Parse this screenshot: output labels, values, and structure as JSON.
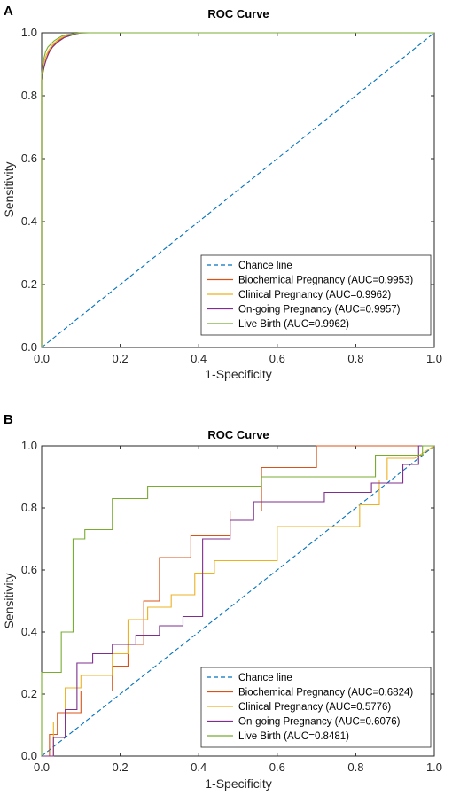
{
  "chart_data": [
    {
      "type": "line",
      "panel": "A",
      "title": "ROC Curve",
      "xlabel": "1-Specificity",
      "ylabel": "Sensitivity",
      "xlim": [
        0,
        1
      ],
      "ylim": [
        0,
        1
      ],
      "xticks": [
        "0.0",
        "0.2",
        "0.4",
        "0.6",
        "0.8",
        "1.0"
      ],
      "yticks": [
        "0.0",
        "0.2",
        "0.4",
        "0.6",
        "0.8",
        "1.0"
      ],
      "grid": false,
      "legend_position": "bottom-right",
      "series": [
        {
          "name": "Chance line",
          "color": "#0072BD",
          "dash": true,
          "x": [
            0,
            1
          ],
          "y": [
            0,
            1
          ]
        },
        {
          "name": "Biochemical Pregnancy (AUC=0.9953)",
          "color": "#D95319",
          "x": [
            0,
            0,
            0.003,
            0.006,
            0.01,
            0.014,
            0.018,
            0.024,
            0.03,
            0.038,
            0.046,
            0.056,
            0.066,
            0.08,
            0.1,
            1
          ],
          "y": [
            0,
            0.85,
            0.87,
            0.89,
            0.91,
            0.925,
            0.94,
            0.95,
            0.96,
            0.97,
            0.978,
            0.985,
            0.99,
            0.995,
            1,
            1
          ]
        },
        {
          "name": "Clinical Pregnancy (AUC=0.9962)",
          "color": "#EDB120",
          "x": [
            0,
            0,
            0.003,
            0.007,
            0.012,
            0.018,
            0.026,
            0.034,
            0.044,
            0.054,
            0.066,
            0.08,
            0.1,
            1
          ],
          "y": [
            0,
            0.86,
            0.89,
            0.91,
            0.93,
            0.945,
            0.96,
            0.97,
            0.98,
            0.987,
            0.993,
            0.997,
            1,
            1
          ]
        },
        {
          "name": "On-going Pregnancy (AUC=0.9957)",
          "color": "#7E2F8E",
          "x": [
            0,
            0,
            0.004,
            0.008,
            0.013,
            0.02,
            0.028,
            0.036,
            0.046,
            0.058,
            0.07,
            0.085,
            0.1,
            1
          ],
          "y": [
            0,
            0.85,
            0.88,
            0.9,
            0.92,
            0.94,
            0.955,
            0.965,
            0.975,
            0.985,
            0.99,
            0.996,
            1,
            1
          ]
        },
        {
          "name": "Live Birth (AUC=0.9962)",
          "color": "#77AC30",
          "x": [
            0,
            0,
            0.003,
            0.006,
            0.01,
            0.016,
            0.024,
            0.032,
            0.042,
            0.052,
            0.064,
            0.08,
            0.1,
            0.12,
            0.15,
            1
          ],
          "y": [
            0,
            0.87,
            0.9,
            0.92,
            0.94,
            0.955,
            0.965,
            0.975,
            0.983,
            0.99,
            0.994,
            0.997,
            0.999,
            1,
            1,
            1
          ]
        }
      ]
    },
    {
      "type": "line",
      "panel": "B",
      "title": "ROC Curve",
      "xlabel": "1-Specificity",
      "ylabel": "Sensitivity",
      "xlim": [
        0,
        1
      ],
      "ylim": [
        0,
        1
      ],
      "xticks": [
        "0.0",
        "0.2",
        "0.4",
        "0.6",
        "0.8",
        "1.0"
      ],
      "yticks": [
        "0.0",
        "0.2",
        "0.4",
        "0.6",
        "0.8",
        "1.0"
      ],
      "grid": false,
      "legend_position": "bottom-right",
      "series": [
        {
          "name": "Chance line",
          "color": "#0072BD",
          "dash": true,
          "x": [
            0,
            1
          ],
          "y": [
            0,
            1
          ]
        },
        {
          "name": "Biochemical Pregnancy (AUC=0.6824)",
          "color": "#D95319",
          "x": [
            0,
            0.02,
            0.02,
            0.04,
            0.04,
            0.1,
            0.1,
            0.18,
            0.18,
            0.22,
            0.22,
            0.26,
            0.26,
            0.3,
            0.3,
            0.38,
            0.38,
            0.48,
            0.48,
            0.56,
            0.56,
            0.7,
            0.7,
            0.95,
            1
          ],
          "y": [
            0,
            0,
            0.07,
            0.07,
            0.14,
            0.14,
            0.21,
            0.21,
            0.29,
            0.29,
            0.36,
            0.36,
            0.5,
            0.5,
            0.64,
            0.64,
            0.71,
            0.71,
            0.79,
            0.79,
            0.93,
            0.93,
            1,
            1,
            1
          ]
        },
        {
          "name": "Clinical Pregnancy (AUC=0.5776)",
          "color": "#EDB120",
          "x": [
            0,
            0.03,
            0.03,
            0.06,
            0.06,
            0.1,
            0.1,
            0.18,
            0.18,
            0.22,
            0.22,
            0.27,
            0.27,
            0.33,
            0.33,
            0.39,
            0.39,
            0.44,
            0.44,
            0.6,
            0.6,
            0.81,
            0.81,
            0.86,
            0.86,
            0.88,
            0.88,
            0.95,
            1
          ],
          "y": [
            0,
            0,
            0.11,
            0.11,
            0.22,
            0.22,
            0.26,
            0.26,
            0.33,
            0.33,
            0.44,
            0.44,
            0.48,
            0.48,
            0.52,
            0.52,
            0.59,
            0.59,
            0.63,
            0.63,
            0.74,
            0.74,
            0.81,
            0.81,
            0.89,
            0.89,
            0.96,
            0.96,
            1
          ]
        },
        {
          "name": "On-going Pregnancy (AUC=0.6076)",
          "color": "#7E2F8E",
          "x": [
            0,
            0.03,
            0.03,
            0.06,
            0.06,
            0.09,
            0.09,
            0.13,
            0.13,
            0.18,
            0.18,
            0.24,
            0.24,
            0.3,
            0.3,
            0.36,
            0.36,
            0.41,
            0.41,
            0.48,
            0.48,
            0.54,
            0.54,
            0.72,
            0.72,
            0.84,
            0.84,
            0.92,
            0.92,
            0.96,
            0.96,
            1
          ],
          "y": [
            0,
            0,
            0.06,
            0.06,
            0.15,
            0.15,
            0.3,
            0.3,
            0.33,
            0.33,
            0.36,
            0.36,
            0.39,
            0.39,
            0.42,
            0.42,
            0.45,
            0.45,
            0.7,
            0.7,
            0.76,
            0.76,
            0.82,
            0.82,
            0.85,
            0.85,
            0.88,
            0.88,
            0.94,
            0.94,
            1,
            1
          ]
        },
        {
          "name": "Live Birth (AUC=0.8481)",
          "color": "#77AC30",
          "x": [
            0,
            0,
            0.05,
            0.05,
            0.08,
            0.08,
            0.11,
            0.11,
            0.18,
            0.18,
            0.27,
            0.27,
            0.56,
            0.56,
            0.85,
            0.85,
            0.97,
            0.97,
            1
          ],
          "y": [
            0,
            0.27,
            0.27,
            0.4,
            0.4,
            0.7,
            0.7,
            0.73,
            0.73,
            0.83,
            0.83,
            0.87,
            0.87,
            0.9,
            0.9,
            0.97,
            0.97,
            1,
            1
          ]
        }
      ]
    }
  ]
}
